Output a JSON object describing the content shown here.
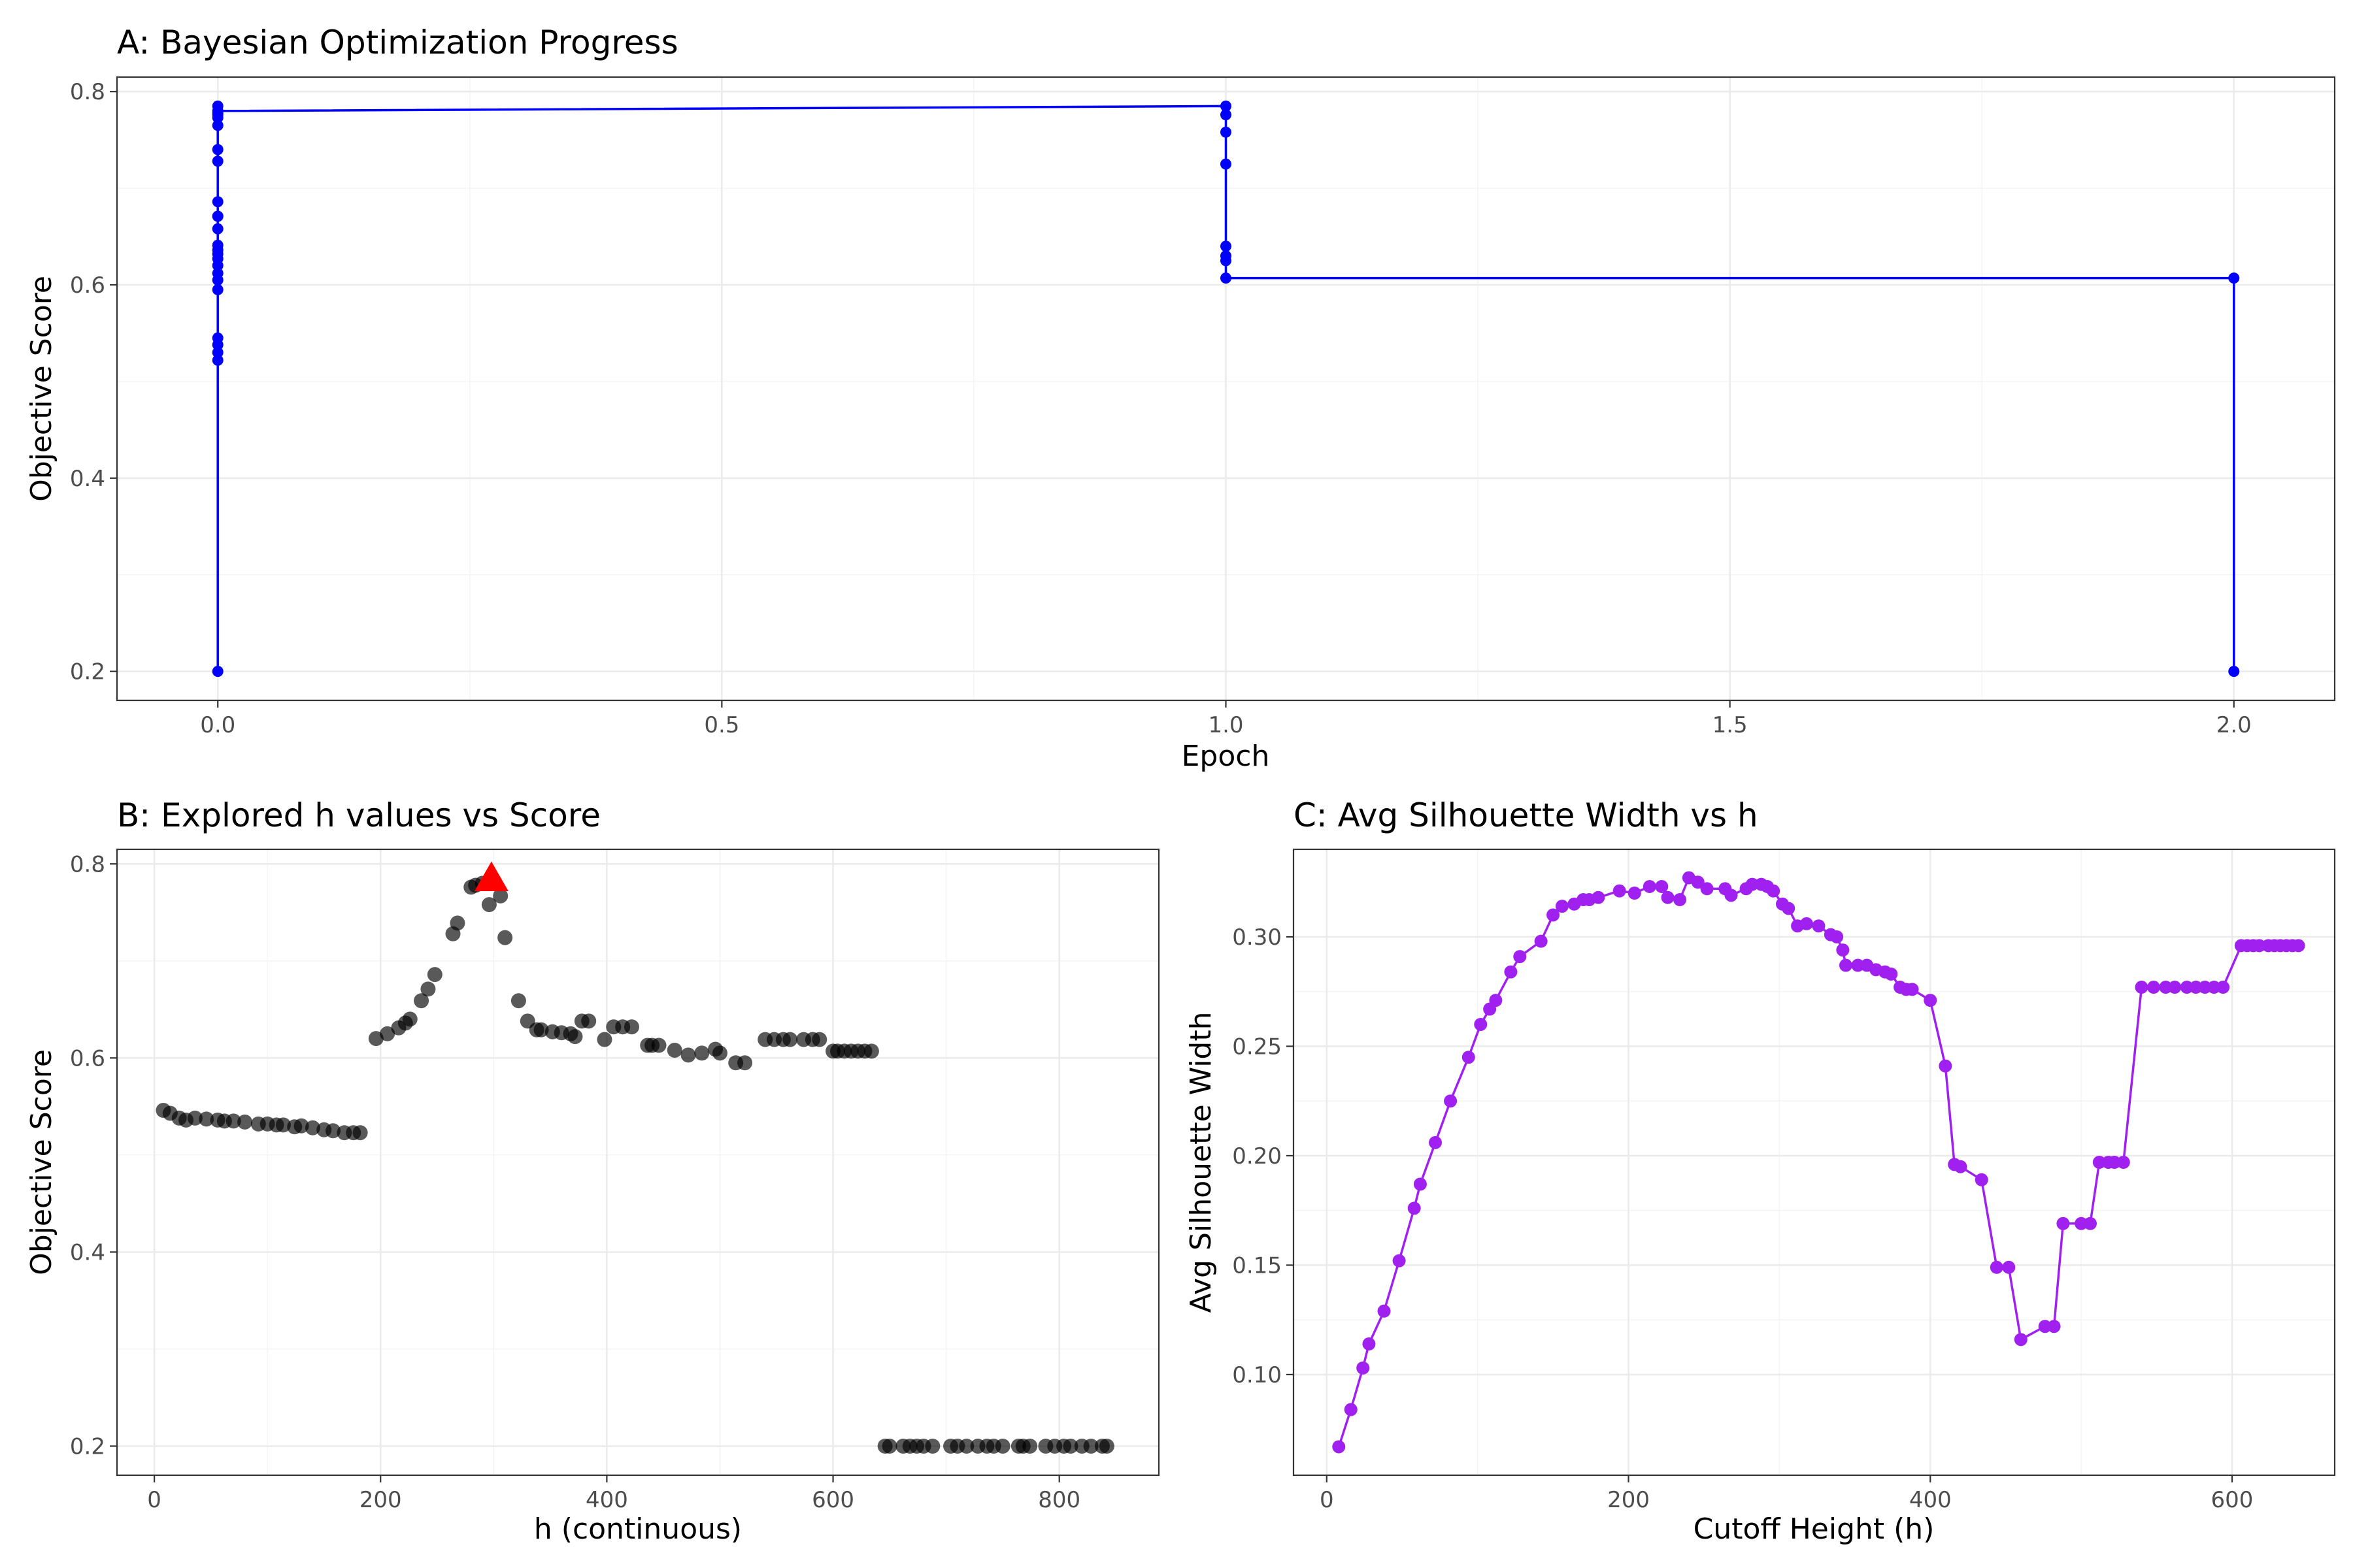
{
  "chart_data": [
    {
      "id": "A",
      "type": "line",
      "title": "A: Bayesian Optimization Progress",
      "xlabel": "Epoch",
      "ylabel": "Objective Score",
      "xlim": [
        -0.1,
        2.1
      ],
      "ylim": [
        0.17,
        0.815
      ],
      "xticks": [
        0.0,
        0.5,
        1.0,
        1.5,
        2.0
      ],
      "xtick_labels": [
        "0.0",
        "0.5",
        "1.0",
        "1.5",
        "2.0"
      ],
      "yticks": [
        0.2,
        0.4,
        0.6,
        0.8
      ],
      "ytick_labels": [
        "0.2",
        "0.4",
        "0.6",
        "0.8"
      ],
      "color": "#0000ff",
      "grid": true,
      "series": [
        {
          "x": [
            0,
            0,
            0,
            0,
            0,
            0,
            0,
            0,
            0,
            0,
            0,
            0,
            0,
            0,
            0,
            0,
            0,
            0,
            0,
            0,
            0,
            0,
            0,
            0,
            0,
            1,
            1,
            1,
            1,
            1,
            1,
            1,
            1,
            2,
            2
          ],
          "y": [
            0.2,
            0.522,
            0.53,
            0.538,
            0.545,
            0.595,
            0.605,
            0.612,
            0.62,
            0.627,
            0.632,
            0.636,
            0.641,
            0.658,
            0.671,
            0.686,
            0.728,
            0.74,
            0.765,
            0.773,
            0.778,
            0.671,
            0.785,
            0.776,
            0.78,
            0.785,
            0.776,
            0.758,
            0.725,
            0.64,
            0.625,
            0.63,
            0.607,
            0.607,
            0.2
          ]
        }
      ]
    },
    {
      "id": "B",
      "type": "scatter",
      "title": "B: Explored h values vs Score",
      "xlabel": "h (continuous)",
      "ylabel": "Objective Score",
      "xlim": [
        -33,
        888
      ],
      "ylim": [
        0.17,
        0.815
      ],
      "xticks": [
        0,
        200,
        400,
        600,
        800
      ],
      "xtick_labels": [
        "0",
        "200",
        "400",
        "600",
        "800"
      ],
      "yticks": [
        0.2,
        0.4,
        0.6,
        0.8
      ],
      "ytick_labels": [
        "0.2",
        "0.4",
        "0.6",
        "0.8"
      ],
      "grid": true,
      "series": [
        {
          "color": "#000000",
          "x": [
            8,
            14,
            22,
            28,
            36,
            46,
            56,
            62,
            70,
            80,
            92,
            100,
            108,
            114,
            124,
            130,
            140,
            150,
            158,
            168,
            176,
            182,
            196,
            206,
            216,
            222,
            226,
            236,
            242,
            248,
            264,
            268,
            280,
            284,
            290,
            296,
            306,
            310,
            322,
            330,
            338,
            342,
            352,
            360,
            368,
            372,
            378,
            384,
            398,
            406,
            414,
            422,
            436,
            440,
            446,
            460,
            472,
            484,
            496,
            500,
            514,
            522,
            540,
            548,
            556,
            562,
            574,
            582,
            588,
            600,
            604,
            610,
            616,
            622,
            628,
            634,
            646,
            650,
            662,
            668,
            674,
            680,
            688,
            704,
            710,
            718,
            728,
            736,
            742,
            750,
            764,
            768,
            774,
            788,
            796,
            804,
            810,
            820,
            828,
            838,
            842
          ],
          "y": [
            0.546,
            0.543,
            0.538,
            0.536,
            0.538,
            0.537,
            0.536,
            0.535,
            0.535,
            0.534,
            0.532,
            0.532,
            0.531,
            0.531,
            0.529,
            0.53,
            0.528,
            0.526,
            0.525,
            0.523,
            0.523,
            0.523,
            0.62,
            0.625,
            0.631,
            0.636,
            0.64,
            0.659,
            0.671,
            0.686,
            0.728,
            0.739,
            0.776,
            0.778,
            0.78,
            0.758,
            0.767,
            0.724,
            0.659,
            0.638,
            0.629,
            0.629,
            0.627,
            0.626,
            0.625,
            0.622,
            0.638,
            0.638,
            0.619,
            0.632,
            0.632,
            0.632,
            0.613,
            0.613,
            0.613,
            0.608,
            0.603,
            0.605,
            0.609,
            0.605,
            0.595,
            0.595,
            0.619,
            0.619,
            0.619,
            0.619,
            0.619,
            0.619,
            0.619,
            0.607,
            0.607,
            0.607,
            0.607,
            0.607,
            0.607,
            0.607,
            0.2,
            0.2,
            0.2,
            0.2,
            0.2,
            0.2,
            0.2,
            0.2,
            0.2,
            0.2,
            0.2,
            0.2,
            0.2,
            0.2,
            0.2,
            0.2,
            0.2,
            0.2,
            0.2,
            0.2,
            0.2,
            0.2,
            0.2,
            0.2,
            0.2
          ]
        },
        {
          "color": "#ff0000",
          "marker": "triangle",
          "x": [
            298
          ],
          "y": [
            0.785
          ]
        }
      ]
    },
    {
      "id": "C",
      "type": "line",
      "title": "C: Avg Silhouette Width vs h",
      "xlabel": "Cutoff Height (h)",
      "ylabel": "Avg Silhouette Width",
      "xlim": [
        -22,
        668
      ],
      "ylim": [
        0.054,
        0.34
      ],
      "xticks": [
        0,
        200,
        400,
        600
      ],
      "xtick_labels": [
        "0",
        "200",
        "400",
        "600"
      ],
      "yticks": [
        0.1,
        0.15,
        0.2,
        0.25,
        0.3
      ],
      "ytick_labels": [
        "0.10",
        "0.15",
        "0.20",
        "0.25",
        "0.30"
      ],
      "color": "#a020f0",
      "grid": true,
      "series": [
        {
          "x": [
            8,
            16,
            24,
            28,
            38,
            48,
            58,
            62,
            72,
            82,
            94,
            102,
            108,
            112,
            122,
            128,
            142,
            150,
            156,
            164,
            170,
            174,
            180,
            194,
            204,
            214,
            222,
            226,
            234,
            240,
            246,
            252,
            264,
            268,
            278,
            282,
            288,
            292,
            296,
            302,
            306,
            312,
            318,
            326,
            334,
            338,
            342,
            344,
            352,
            358,
            364,
            370,
            374,
            380,
            384,
            388,
            400,
            410,
            416,
            420,
            434,
            444,
            452,
            460,
            476,
            482,
            488,
            500,
            506,
            512,
            518,
            522,
            528,
            540,
            548,
            556,
            562,
            570,
            576,
            582,
            588,
            594,
            606,
            610,
            614,
            618,
            624,
            628,
            632,
            636,
            640,
            644
          ],
          "y": [
            0.067,
            0.084,
            0.103,
            0.114,
            0.129,
            0.152,
            0.176,
            0.187,
            0.206,
            0.225,
            0.245,
            0.26,
            0.267,
            0.271,
            0.284,
            0.291,
            0.298,
            0.31,
            0.314,
            0.315,
            0.317,
            0.317,
            0.318,
            0.321,
            0.32,
            0.323,
            0.323,
            0.318,
            0.317,
            0.327,
            0.325,
            0.322,
            0.322,
            0.319,
            0.322,
            0.324,
            0.324,
            0.323,
            0.321,
            0.315,
            0.313,
            0.305,
            0.306,
            0.305,
            0.301,
            0.3,
            0.294,
            0.287,
            0.287,
            0.287,
            0.285,
            0.284,
            0.283,
            0.277,
            0.276,
            0.276,
            0.271,
            0.241,
            0.196,
            0.195,
            0.189,
            0.149,
            0.149,
            0.116,
            0.122,
            0.122,
            0.169,
            0.169,
            0.169,
            0.197,
            0.197,
            0.197,
            0.197,
            0.277,
            0.277,
            0.277,
            0.277,
            0.277,
            0.277,
            0.277,
            0.277,
            0.277,
            0.296,
            0.296,
            0.296,
            0.296,
            0.296,
            0.296,
            0.296,
            0.296,
            0.296,
            0.296
          ]
        }
      ]
    }
  ]
}
